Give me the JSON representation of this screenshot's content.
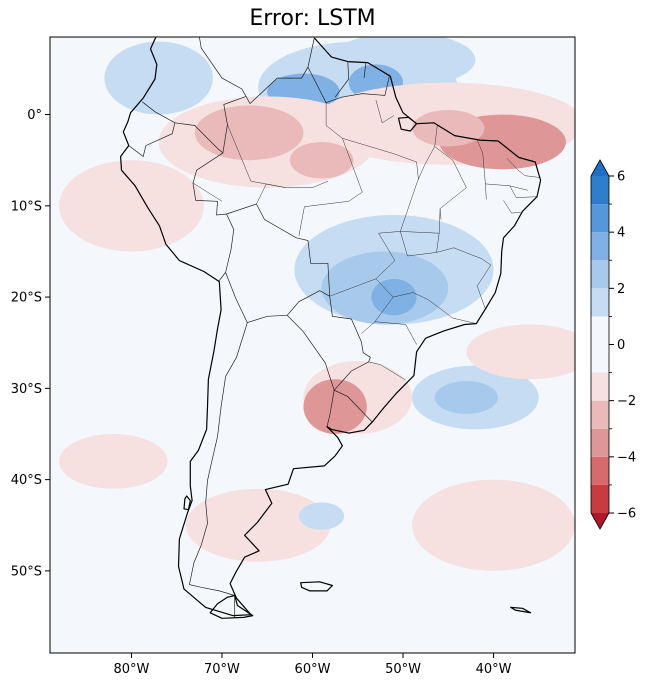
{
  "title": "Error: LSTM",
  "map": {
    "lon_range": [
      -89,
      -31
    ],
    "lat_range": [
      -59,
      8.5
    ],
    "x_ticks": [
      {
        "lon": -80,
        "label": "80°W"
      },
      {
        "lon": -70,
        "label": "70°W"
      },
      {
        "lon": -60,
        "label": "60°W"
      },
      {
        "lon": -50,
        "label": "50°W"
      },
      {
        "lon": -40,
        "label": "40°W"
      }
    ],
    "y_ticks": [
      {
        "lat": 0,
        "label": "0°"
      },
      {
        "lat": -10,
        "label": "10°S"
      },
      {
        "lat": -20,
        "label": "20°S"
      },
      {
        "lat": -30,
        "label": "30°S"
      },
      {
        "lat": -40,
        "label": "40°S"
      },
      {
        "lat": -50,
        "label": "50°S"
      }
    ]
  },
  "colorbar": {
    "range": [
      -6,
      6
    ],
    "extend": "both",
    "levels": [
      -6,
      -5,
      -4,
      -3,
      -2,
      -1,
      1,
      2,
      3,
      4,
      5,
      6
    ],
    "colors": [
      "#b2182b",
      "#c83c3f",
      "#d66a6c",
      "#df9697",
      "#eab9b9",
      "#f6e0e0",
      "#f4f8fc",
      "#c6dcf2",
      "#a7c9ec",
      "#7fb1e4",
      "#5597da",
      "#2f7dcd",
      "#1f6fc6"
    ],
    "major_ticks": [
      {
        "value": 6,
        "label": "6"
      },
      {
        "value": 4,
        "label": "4"
      },
      {
        "value": 2,
        "label": "2"
      },
      {
        "value": 0,
        "label": "0"
      },
      {
        "value": -2,
        "label": "−2"
      },
      {
        "value": -4,
        "label": "−4"
      },
      {
        "value": -6,
        "label": "−6"
      }
    ],
    "minor_ticks": [
      5,
      3,
      1,
      -1,
      -3,
      -5
    ]
  },
  "error_field": {
    "background": "#f4f8fc",
    "patches": [
      {
        "lon": -77,
        "lat": 4,
        "rx": 6,
        "ry": 4,
        "value": 1.6
      },
      {
        "lon": -55,
        "lat": 3,
        "rx": 11,
        "ry": 5,
        "value": 1.5
      },
      {
        "lon": -50,
        "lat": 6,
        "rx": 8,
        "ry": 3,
        "value": 1.4
      },
      {
        "lon": -61,
        "lat": 2.5,
        "rx": 4,
        "ry": 2,
        "value": 3.2
      },
      {
        "lon": -53,
        "lat": 3.5,
        "rx": 3,
        "ry": 2,
        "value": 3.0
      },
      {
        "lon": -45,
        "lat": -1,
        "rx": 15,
        "ry": 4.5,
        "value": -1.6
      },
      {
        "lon": -39,
        "lat": -3,
        "rx": 7,
        "ry": 3,
        "value": -3.2
      },
      {
        "lon": -45,
        "lat": -1.5,
        "rx": 4,
        "ry": 2,
        "value": -2.8
      },
      {
        "lon": -65,
        "lat": -3,
        "rx": 12,
        "ry": 5,
        "value": -1.6
      },
      {
        "lon": -67,
        "lat": -2,
        "rx": 6,
        "ry": 3,
        "value": -2.6
      },
      {
        "lon": -59,
        "lat": -5,
        "rx": 3.5,
        "ry": 2,
        "value": -2.4
      },
      {
        "lon": -51,
        "lat": -17,
        "rx": 11,
        "ry": 6,
        "value": 1.4
      },
      {
        "lon": -52,
        "lat": -19,
        "rx": 7,
        "ry": 4,
        "value": 2.6
      },
      {
        "lon": -51,
        "lat": -20,
        "rx": 2.5,
        "ry": 2,
        "value": 3.5
      },
      {
        "lon": -55,
        "lat": -31,
        "rx": 6,
        "ry": 4,
        "value": -1.7
      },
      {
        "lon": -57.5,
        "lat": -32,
        "rx": 3.5,
        "ry": 3,
        "value": -3.3
      },
      {
        "lon": -42,
        "lat": -31,
        "rx": 7,
        "ry": 3.5,
        "value": 1.6
      },
      {
        "lon": -43,
        "lat": -31,
        "rx": 3.5,
        "ry": 1.8,
        "value": 2.7
      },
      {
        "lon": -36,
        "lat": -26,
        "rx": 7,
        "ry": 3,
        "value": -1.2
      },
      {
        "lon": -80,
        "lat": -10,
        "rx": 8,
        "ry": 5,
        "value": -1.2
      },
      {
        "lon": -40,
        "lat": -45,
        "rx": 9,
        "ry": 5,
        "value": -1.1
      },
      {
        "lon": -66,
        "lat": -45,
        "rx": 8,
        "ry": 4,
        "value": -1.1
      },
      {
        "lon": -82,
        "lat": -38,
        "rx": 6,
        "ry": 3,
        "value": -1.1
      },
      {
        "lon": -59,
        "lat": -44,
        "rx": 2.5,
        "ry": 1.5,
        "value": 1.5
      }
    ]
  },
  "coastline": {
    "south_america": [
      [
        -77.3,
        8.5
      ],
      [
        -77.9,
        7.2
      ],
      [
        -77.2,
        5.5
      ],
      [
        -77.4,
        3.9
      ],
      [
        -78.7,
        1.8
      ],
      [
        -80.1,
        0.2
      ],
      [
        -80.4,
        -0.8
      ],
      [
        -80.9,
        -1.9
      ],
      [
        -80.3,
        -3.4
      ],
      [
        -81.2,
        -4.6
      ],
      [
        -81.1,
        -6.1
      ],
      [
        -79.6,
        -7.8
      ],
      [
        -78.2,
        -10.2
      ],
      [
        -76.9,
        -12.2
      ],
      [
        -76.2,
        -14.2
      ],
      [
        -74.7,
        -16
      ],
      [
        -72,
        -17.2
      ],
      [
        -70.3,
        -18.3
      ],
      [
        -70.1,
        -21.4
      ],
      [
        -70.5,
        -23.5
      ],
      [
        -70.9,
        -26
      ],
      [
        -71.5,
        -29
      ],
      [
        -71.6,
        -32
      ],
      [
        -71.7,
        -34.5
      ],
      [
        -72.6,
        -36.8
      ],
      [
        -73.5,
        -38
      ],
      [
        -73.5,
        -40.7
      ],
      [
        -73.3,
        -42.3
      ],
      [
        -73.8,
        -43.6
      ],
      [
        -74.7,
        -46.5
      ],
      [
        -74.8,
        -49.5
      ],
      [
        -74.2,
        -52
      ],
      [
        -71.8,
        -54
      ],
      [
        -68.8,
        -54.9
      ],
      [
        -66.8,
        -54.8
      ],
      [
        -68.4,
        -53
      ],
      [
        -69.1,
        -51.4
      ],
      [
        -68.5,
        -50.2
      ],
      [
        -67.5,
        -48.5
      ],
      [
        -65.9,
        -47.8
      ],
      [
        -67.5,
        -46.1
      ],
      [
        -66.1,
        -44.7
      ],
      [
        -64.5,
        -42.6
      ],
      [
        -65.2,
        -41.1
      ],
      [
        -62.7,
        -40.5
      ],
      [
        -62.1,
        -38.8
      ],
      [
        -58.7,
        -38.5
      ],
      [
        -57.5,
        -37.4
      ],
      [
        -56.7,
        -36.3
      ],
      [
        -57.2,
        -35.4
      ],
      [
        -58.4,
        -34.2
      ],
      [
        -57.9,
        -34.5
      ],
      [
        -56,
        -34.9
      ],
      [
        -54.3,
        -34.6
      ],
      [
        -53.4,
        -33.7
      ],
      [
        -52.1,
        -32.1
      ],
      [
        -50.7,
        -30.5
      ],
      [
        -48.8,
        -28.6
      ],
      [
        -48.5,
        -26
      ],
      [
        -47.5,
        -24.5
      ],
      [
        -45.5,
        -23.7
      ],
      [
        -43.2,
        -23
      ],
      [
        -41.9,
        -22.9
      ],
      [
        -40.9,
        -21.3
      ],
      [
        -39.8,
        -19.5
      ],
      [
        -39.2,
        -17.4
      ],
      [
        -39.1,
        -15
      ],
      [
        -38.9,
        -13.5
      ],
      [
        -37.7,
        -12.2
      ],
      [
        -36.8,
        -10.6
      ],
      [
        -35.2,
        -9
      ],
      [
        -34.8,
        -7.2
      ],
      [
        -35.4,
        -5.2
      ],
      [
        -37.2,
        -4.7
      ],
      [
        -39.5,
        -2.9
      ],
      [
        -41.5,
        -2.8
      ],
      [
        -44.3,
        -2.3
      ],
      [
        -46.6,
        -0.9
      ],
      [
        -48.5,
        -1
      ],
      [
        -50,
        0.2
      ],
      [
        -50.8,
        1.9
      ],
      [
        -51.4,
        4.2
      ],
      [
        -53.9,
        5.7
      ],
      [
        -56.1,
        5.8
      ],
      [
        -57.9,
        6.3
      ],
      [
        -59.8,
        8.4
      ]
    ],
    "tierra_del_fuego": [
      [
        -68.6,
        -52.7
      ],
      [
        -68.3,
        -53.8
      ],
      [
        -66.6,
        -54.9
      ],
      [
        -67.6,
        -55.1
      ],
      [
        -70,
        -55.2
      ],
      [
        -71.3,
        -54.6
      ],
      [
        -70.5,
        -53.6
      ],
      [
        -69.4,
        -52.9
      ]
    ],
    "falklands": [
      [
        -61.3,
        -51.3
      ],
      [
        -59.2,
        -51.2
      ],
      [
        -57.8,
        -51.6
      ],
      [
        -58.4,
        -52.2
      ],
      [
        -60.3,
        -52.2
      ],
      [
        -61.2,
        -51.8
      ]
    ],
    "chiloe": [
      [
        -73.9,
        -41.8
      ],
      [
        -73.5,
        -42.3
      ],
      [
        -73.7,
        -43.3
      ],
      [
        -74.2,
        -43.2
      ],
      [
        -74.1,
        -42.1
      ]
    ],
    "marajo": [
      [
        -50.5,
        -0.4
      ],
      [
        -49.4,
        -0.3
      ],
      [
        -48.5,
        -1
      ],
      [
        -49.2,
        -1.8
      ],
      [
        -50.2,
        -1.6
      ]
    ],
    "south_georgia": [
      [
        -38.1,
        -54
      ],
      [
        -36.8,
        -54.1
      ],
      [
        -35.9,
        -54.6
      ],
      [
        -36.5,
        -54.5
      ],
      [
        -37.6,
        -54.3
      ]
    ]
  },
  "borders": [
    [
      [
        -59.8,
        8.4
      ],
      [
        -60.5,
        5.2
      ],
      [
        -61.2,
        4
      ],
      [
        -63.9,
        4
      ],
      [
        -66.9,
        1.2
      ],
      [
        -67.8,
        2.8
      ],
      [
        -70,
        4
      ],
      [
        -72.3,
        7.3
      ],
      [
        -72.5,
        8.5
      ]
    ],
    [
      [
        -67.3,
        2
      ],
      [
        -69.8,
        1.1
      ],
      [
        -69.4,
        -1.1
      ],
      [
        -69.9,
        -4.2
      ],
      [
        -70.4,
        -3.8
      ],
      [
        -73,
        -1.2
      ],
      [
        -75.2,
        -0.9
      ],
      [
        -77.4,
        0.3
      ],
      [
        -78.8,
        1.4
      ]
    ],
    [
      [
        -75.2,
        -0.9
      ],
      [
        -75.5,
        -2.1
      ],
      [
        -78.4,
        -3.4
      ],
      [
        -78.7,
        -4.6
      ],
      [
        -80.3,
        -3.4
      ]
    ],
    [
      [
        -69.9,
        -4.2
      ],
      [
        -72.8,
        -6.1
      ],
      [
        -73.2,
        -7.5
      ],
      [
        -72.9,
        -9.4
      ],
      [
        -70.5,
        -9.5
      ],
      [
        -70.6,
        -11
      ],
      [
        -69.5,
        -10.9
      ],
      [
        -68.7,
        -12.6
      ],
      [
        -69,
        -14.8
      ],
      [
        -69.6,
        -17.3
      ],
      [
        -70.4,
        -18.3
      ]
    ],
    [
      [
        -69.5,
        -10.9
      ],
      [
        -66.2,
        -9.8
      ],
      [
        -65.3,
        -11.5
      ],
      [
        -61.8,
        -13.5
      ],
      [
        -60.5,
        -13.8
      ],
      [
        -60.2,
        -16.3
      ],
      [
        -58.3,
        -16.3
      ],
      [
        -58.1,
        -19.9
      ],
      [
        -57.8,
        -22.1
      ],
      [
        -55.7,
        -22.4
      ],
      [
        -54.6,
        -24.9
      ],
      [
        -54.4,
        -26.1
      ],
      [
        -53.6,
        -26.6
      ],
      [
        -53.8,
        -27.1
      ],
      [
        -55.7,
        -28.1
      ],
      [
        -57.6,
        -30.2
      ],
      [
        -56.1,
        -30.9
      ],
      [
        -53.4,
        -33.7
      ]
    ],
    [
      [
        -69.6,
        -17.3
      ],
      [
        -68.5,
        -20.1
      ],
      [
        -67.2,
        -22.8
      ],
      [
        -65,
        -22.1
      ],
      [
        -62.8,
        -22
      ],
      [
        -61.5,
        -20.5
      ],
      [
        -59.2,
        -19.3
      ],
      [
        -58.1,
        -19.9
      ]
    ],
    [
      [
        -62.8,
        -22
      ],
      [
        -61,
        -23.8
      ],
      [
        -58.6,
        -27.2
      ],
      [
        -57.6,
        -30.2
      ]
    ],
    [
      [
        -58.4,
        -34.2
      ],
      [
        -58.1,
        -33
      ],
      [
        -57.6,
        -30.2
      ]
    ],
    [
      [
        -67.2,
        -22.8
      ],
      [
        -68.4,
        -26.6
      ],
      [
        -69.6,
        -28.7
      ],
      [
        -70.1,
        -32
      ],
      [
        -70.5,
        -35.3
      ],
      [
        -71.1,
        -37.9
      ],
      [
        -71.6,
        -40.1
      ],
      [
        -71.8,
        -42.5
      ],
      [
        -71.6,
        -44.8
      ],
      [
        -72.3,
        -47.2
      ],
      [
        -73.1,
        -49.1
      ],
      [
        -73.6,
        -51.5
      ],
      [
        -72.3,
        -51.8
      ],
      [
        -70.3,
        -52.2
      ],
      [
        -68.6,
        -52.7
      ]
    ],
    [
      [
        -68.6,
        -52.7
      ],
      [
        -68.6,
        -55.1
      ]
    ],
    [
      [
        -60.5,
        5.2
      ],
      [
        -58.5,
        1.3
      ],
      [
        -56.8,
        1.9
      ],
      [
        -54.5,
        2.3
      ],
      [
        -52,
        2.1
      ],
      [
        -51.5,
        4.2
      ]
    ],
    [
      [
        -56.1,
        5.8
      ],
      [
        -56,
        3.9
      ],
      [
        -57.5,
        1.9
      ]
    ],
    [
      [
        -54.1,
        5.7
      ],
      [
        -54.3,
        4
      ]
    ]
  ],
  "states": [
    [
      [
        -73.2,
        -7.5
      ],
      [
        -70,
        -9.5
      ]
    ],
    [
      [
        -69.4,
        -1.1
      ],
      [
        -66.8,
        -7.3
      ],
      [
        -63,
        -8
      ],
      [
        -60,
        -8
      ],
      [
        -58.3,
        -7.3
      ]
    ],
    [
      [
        -58.5,
        1.3
      ],
      [
        -58.5,
        -1.2
      ],
      [
        -56.7,
        -2.6
      ],
      [
        -54.5,
        -8.5
      ],
      [
        -56,
        -9.5
      ],
      [
        -60.9,
        -10.1
      ]
    ],
    [
      [
        -56.7,
        -2.6
      ],
      [
        -51,
        -4.3
      ],
      [
        -48.5,
        -5.2
      ],
      [
        -48.3,
        -7.1
      ]
    ],
    [
      [
        -53,
        1.6
      ],
      [
        -52.3,
        -0.9
      ],
      [
        -51,
        -0.1
      ]
    ],
    [
      [
        -46.2,
        -1.1
      ],
      [
        -46.5,
        -3.5
      ],
      [
        -47.6,
        -5.5
      ],
      [
        -48.4,
        -7.3
      ],
      [
        -49.6,
        -10.8
      ],
      [
        -50.3,
        -12.8
      ]
    ],
    [
      [
        -46.5,
        -3.5
      ],
      [
        -44.5,
        -5
      ],
      [
        -43,
        -8
      ],
      [
        -45.9,
        -10.3
      ],
      [
        -45.8,
        -11.5
      ]
    ],
    [
      [
        -41.8,
        -2.8
      ],
      [
        -41.2,
        -4.2
      ],
      [
        -40.9,
        -7.6
      ],
      [
        -40.8,
        -9.3
      ]
    ],
    [
      [
        -40.9,
        -7.6
      ],
      [
        -38.2,
        -7.8
      ],
      [
        -36.2,
        -8.3
      ]
    ],
    [
      [
        -38.5,
        -4.8
      ],
      [
        -37.3,
        -6.1
      ],
      [
        -36.5,
        -6.7
      ],
      [
        -34.9,
        -6.9
      ]
    ],
    [
      [
        -38.2,
        -7.8
      ],
      [
        -37.5,
        -9.1
      ],
      [
        -35.2,
        -9
      ]
    ],
    [
      [
        -38.9,
        -9.4
      ],
      [
        -38,
        -10.8
      ],
      [
        -37,
        -10.7
      ]
    ],
    [
      [
        -45.9,
        -10.3
      ],
      [
        -46,
        -13
      ],
      [
        -46.3,
        -15.1
      ],
      [
        -44.4,
        -14.6
      ],
      [
        -41.3,
        -15.8
      ],
      [
        -40.3,
        -16.5
      ]
    ],
    [
      [
        -58.1,
        -19.9
      ],
      [
        -53,
        -18
      ],
      [
        -50.9,
        -16
      ],
      [
        -52.7,
        -13
      ],
      [
        -50.3,
        -12.8
      ],
      [
        -46,
        -13
      ]
    ],
    [
      [
        -53,
        -18
      ],
      [
        -51.1,
        -20
      ],
      [
        -53.1,
        -22.7
      ],
      [
        -54.6,
        -24
      ]
    ],
    [
      [
        -51.1,
        -20
      ],
      [
        -48.9,
        -19.5
      ],
      [
        -47.2,
        -20.3
      ],
      [
        -44.5,
        -22.3
      ],
      [
        -41.9,
        -22.9
      ]
    ],
    [
      [
        -50.3,
        -12.8
      ],
      [
        -49.5,
        -15.5
      ],
      [
        -46.3,
        -15.1
      ]
    ],
    [
      [
        -53.1,
        -22.7
      ],
      [
        -49.7,
        -23
      ],
      [
        -48.5,
        -25.2
      ]
    ],
    [
      [
        -53.8,
        -27.1
      ],
      [
        -52.5,
        -27.4
      ],
      [
        -49.7,
        -29.1
      ]
    ],
    [
      [
        -40.3,
        -16.5
      ],
      [
        -41.8,
        -18.8
      ],
      [
        -40.9,
        -21.3
      ]
    ],
    [
      [
        -60.9,
        -10.1
      ],
      [
        -61.5,
        -13.3
      ]
    ],
    [
      [
        -66.2,
        -9.8
      ],
      [
        -65.1,
        -7.6
      ],
      [
        -63,
        -8
      ]
    ]
  ]
}
